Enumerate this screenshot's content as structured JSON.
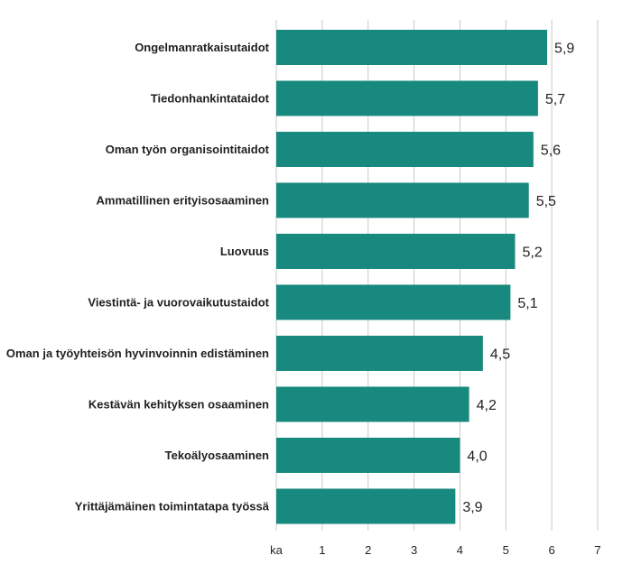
{
  "chart_data": {
    "type": "bar",
    "orientation": "horizontal",
    "categories": [
      "Ongelmanratkaisutaidot",
      "Tiedonhankintataidot",
      "Oman työn organisointitaidot",
      "Ammatillinen erityisosaaminen",
      "Luovuus",
      "Viestintä- ja vuorovaikutustaidot",
      "Oman ja työyhteisön hyvinvoinnin edistäminen",
      "Kestävän kehityksen osaaminen",
      "Tekoälyosaaminen",
      "Yrittäjämäinen toimintatapa työssä"
    ],
    "values": [
      5.9,
      5.7,
      5.6,
      5.5,
      5.2,
      5.1,
      4.5,
      4.2,
      4.0,
      3.9
    ],
    "value_labels": [
      "5,9",
      "5,7",
      "5,6",
      "5,5",
      "5,2",
      "5,1",
      "4,5",
      "4,2",
      "4,0",
      "3,9"
    ],
    "xlim": [
      0,
      7
    ],
    "ticks": [
      0,
      1,
      2,
      3,
      4,
      5,
      6,
      7
    ],
    "tick_labels": [
      "ka",
      "1",
      "2",
      "3",
      "4",
      "5",
      "6",
      "7"
    ],
    "grid": true,
    "colors": {
      "bar": "#17897e",
      "grid": "#c8c8c8",
      "text": "#231f20"
    }
  }
}
